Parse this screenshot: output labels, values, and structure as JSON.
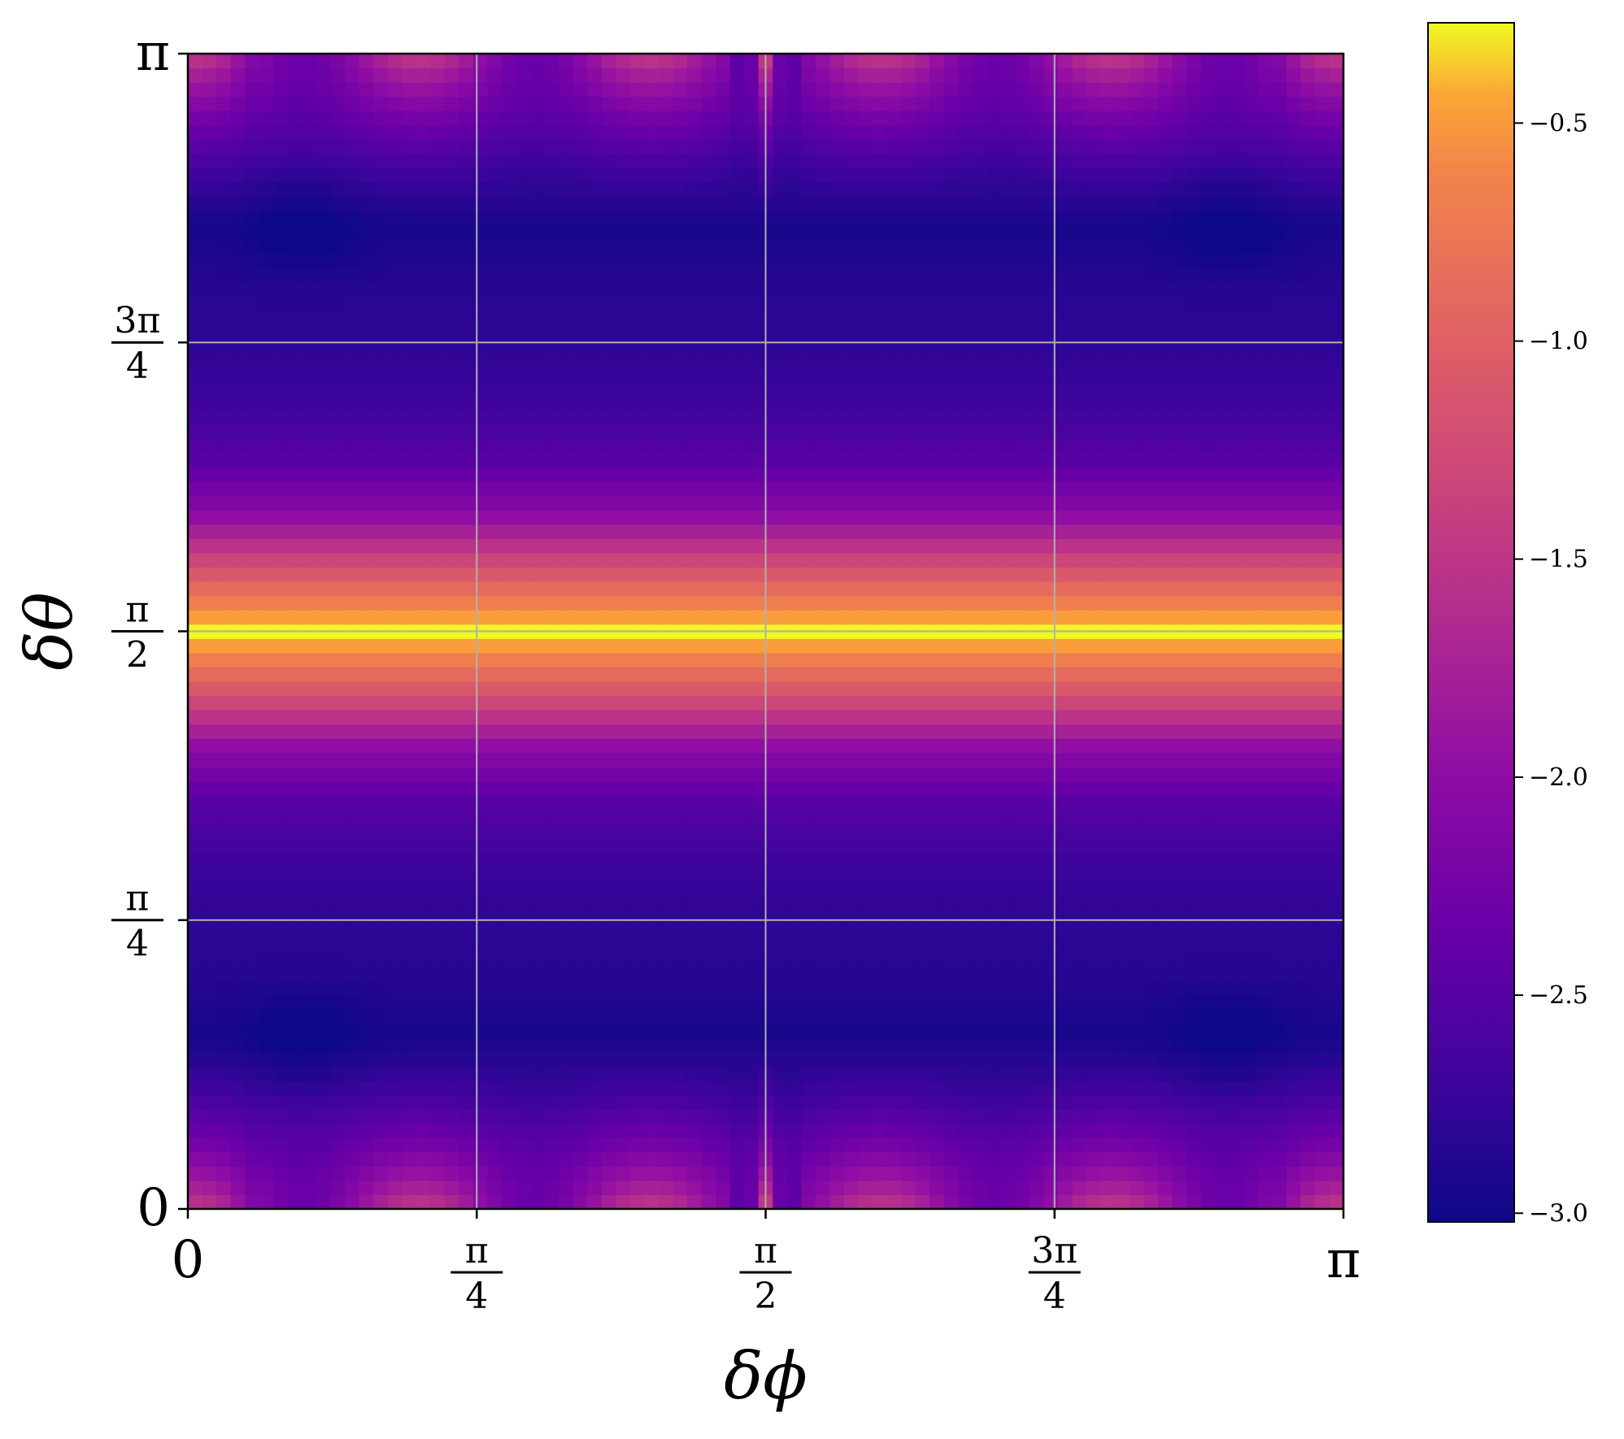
{
  "chart_data": {
    "type": "heatmap",
    "title": "",
    "xlabel": "δϕ",
    "ylabel": "δθ",
    "xlim": [
      0,
      3.14159
    ],
    "ylim": [
      0,
      3.14159
    ],
    "x_ticks": [
      {
        "value": 0,
        "label": "0"
      },
      {
        "value": 0.785398,
        "num": "π",
        "den": "4"
      },
      {
        "value": 1.570796,
        "num": "π",
        "den": "2"
      },
      {
        "value": 2.356194,
        "num": "3π",
        "den": "4"
      },
      {
        "value": 3.141593,
        "label": "π"
      }
    ],
    "y_ticks": [
      {
        "value": 0,
        "label": "0"
      },
      {
        "value": 0.785398,
        "num": "π",
        "den": "4"
      },
      {
        "value": 1.570796,
        "num": "π",
        "den": "2"
      },
      {
        "value": 2.356194,
        "num": "3π",
        "den": "4"
      },
      {
        "value": 3.141593,
        "label": "π"
      }
    ],
    "grid": true,
    "colormap": "plasma",
    "colorbar": {
      "vmin": -3.02,
      "vmax": -0.27,
      "ticks": [
        -0.5,
        -1.0,
        -1.5,
        -2.0,
        -2.5,
        -3.0
      ],
      "tick_labels": [
        "−0.5",
        "−1.0",
        "−1.5",
        "−2.0",
        "−2.5",
        "−3.0"
      ],
      "position": "right"
    },
    "grid_resolution": [
      81,
      81
    ],
    "value_profile_theta": [
      {
        "theta_over_pi": 0.0,
        "value": -1.9
      },
      {
        "theta_over_pi": 0.05,
        "value": -2.3
      },
      {
        "theta_over_pi": 0.1,
        "value": -2.7
      },
      {
        "theta_over_pi": 0.15,
        "value": -2.95
      },
      {
        "theta_over_pi": 0.2,
        "value": -2.85
      },
      {
        "theta_over_pi": 0.25,
        "value": -2.8
      },
      {
        "theta_over_pi": 0.3,
        "value": -2.7
      },
      {
        "theta_over_pi": 0.35,
        "value": -2.5
      },
      {
        "theta_over_pi": 0.4,
        "value": -2.0
      },
      {
        "theta_over_pi": 0.45,
        "value": -1.1
      },
      {
        "theta_over_pi": 0.5,
        "value": -0.27
      }
    ]
  }
}
